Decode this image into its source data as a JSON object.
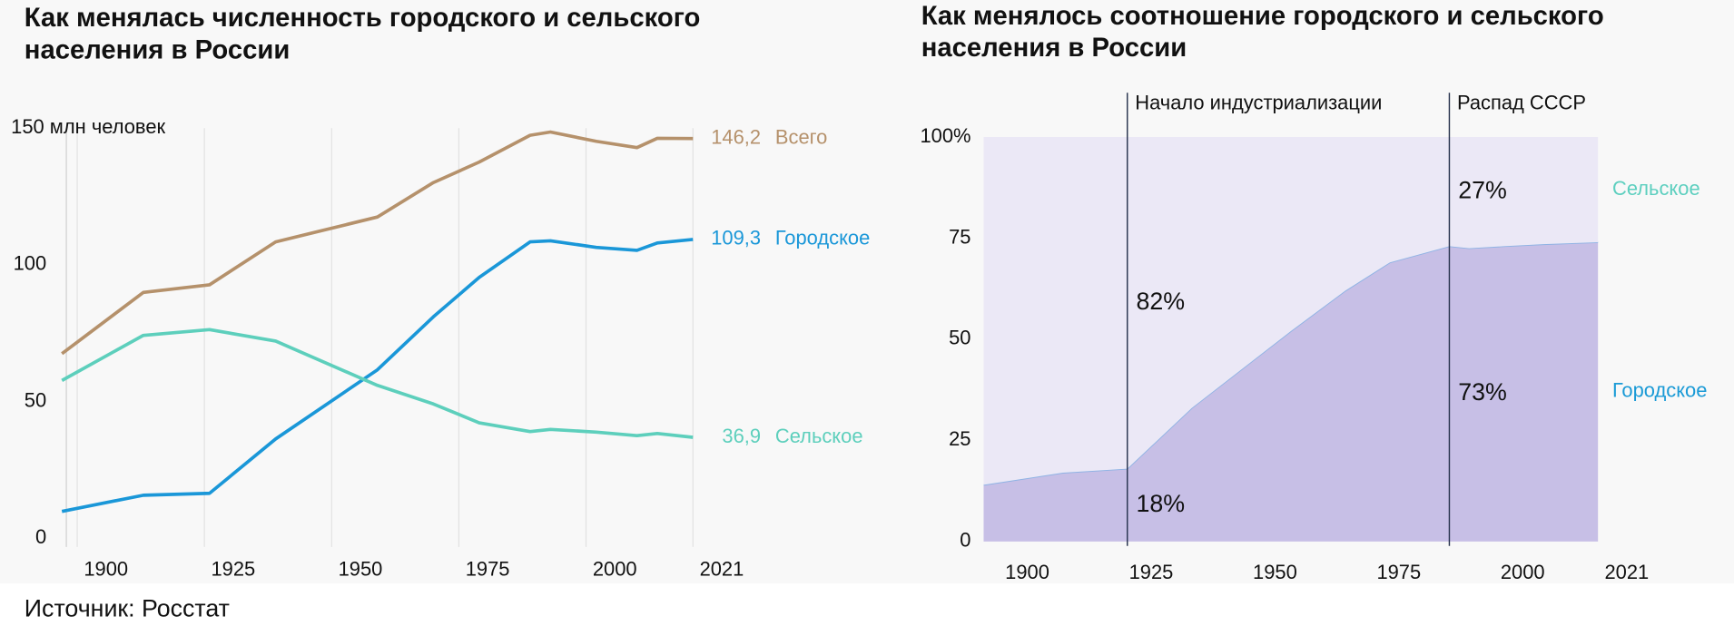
{
  "chart_data": [
    {
      "type": "line",
      "title": "Как менялась численность городского и сельского населения в России",
      "x": [
        1897,
        1913,
        1926,
        1939,
        1959,
        1970,
        1979,
        1989,
        1993,
        2002,
        2010,
        2014,
        2021
      ],
      "series": [
        {
          "name": "Всего",
          "color": "#b5916b",
          "values": [
            67.5,
            89.9,
            92.7,
            108.4,
            117.5,
            130.1,
            137.6,
            147.4,
            148.6,
            145.2,
            142.9,
            146.3,
            146.2
          ],
          "value_labels": [
            null,
            null,
            null,
            null,
            null,
            null,
            null,
            null,
            null,
            null,
            null,
            null,
            "146,2"
          ]
        },
        {
          "name": "Городское",
          "color": "#1a97d8",
          "values": [
            9.8,
            15.7,
            16.4,
            36.3,
            61.6,
            81.0,
            95.4,
            108.4,
            108.8,
            106.4,
            105.3,
            108.0,
            109.3
          ],
          "value_labels": [
            null,
            null,
            null,
            null,
            null,
            null,
            null,
            null,
            null,
            null,
            null,
            null,
            "109,3"
          ]
        },
        {
          "name": "Сельское",
          "color": "#5dcfbc",
          "values": [
            57.7,
            74.2,
            76.3,
            72.1,
            55.9,
            49.1,
            42.2,
            39.0,
            39.8,
            38.8,
            37.5,
            38.3,
            36.9
          ],
          "value_labels": [
            null,
            null,
            null,
            null,
            null,
            null,
            null,
            null,
            null,
            null,
            null,
            null,
            "36,9"
          ]
        }
      ],
      "xlim": [
        1897,
        2021
      ],
      "xticks": [
        1900,
        1925,
        1950,
        1975,
        2000,
        2021
      ],
      "ylim": [
        0,
        150
      ],
      "yticks": [
        0,
        50,
        100,
        {
          "value": 150,
          "label": "150 млн человек"
        }
      ],
      "grid": true
    },
    {
      "type": "area",
      "title": "Как менялось соотношение городского и сельского населения в России",
      "x": [
        1897,
        1913,
        1926,
        1939,
        1959,
        1970,
        1979,
        1991,
        1995,
        2002,
        2010,
        2021
      ],
      "series": [
        {
          "name": "Городское",
          "color": "#c7bfe6",
          "label_color": "#1a9ad6",
          "values": [
            14,
            17,
            18,
            33,
            52,
            62,
            69,
            73,
            72.5,
            73,
            73.5,
            74
          ],
          "value_labels": [
            null,
            null,
            "18%",
            null,
            null,
            null,
            null,
            "73%",
            null,
            null,
            null,
            null
          ]
        },
        {
          "name": "Сельское",
          "color": "#ebe8f6",
          "label_color": "#5dcfbf",
          "values": [
            86,
            83,
            82,
            67,
            48,
            38,
            31,
            27,
            27.5,
            27,
            26.5,
            26
          ],
          "value_labels": [
            null,
            null,
            "82%",
            null,
            null,
            null,
            null,
            "27%",
            null,
            null,
            null,
            null
          ]
        }
      ],
      "annotations": [
        {
          "x": 1926,
          "label": "Начало индустриализации"
        },
        {
          "x": 1991,
          "label": "Распад СССР"
        }
      ],
      "xlim": [
        1896,
        2021
      ],
      "xticks": [
        1900,
        1925,
        1950,
        1975,
        2000,
        2021
      ],
      "ylim": [
        0,
        100
      ],
      "yticks": [
        0,
        25,
        50,
        75,
        {
          "value": 100,
          "label": "100%"
        }
      ],
      "grid": false
    }
  ],
  "source": "Источник: Росстат"
}
